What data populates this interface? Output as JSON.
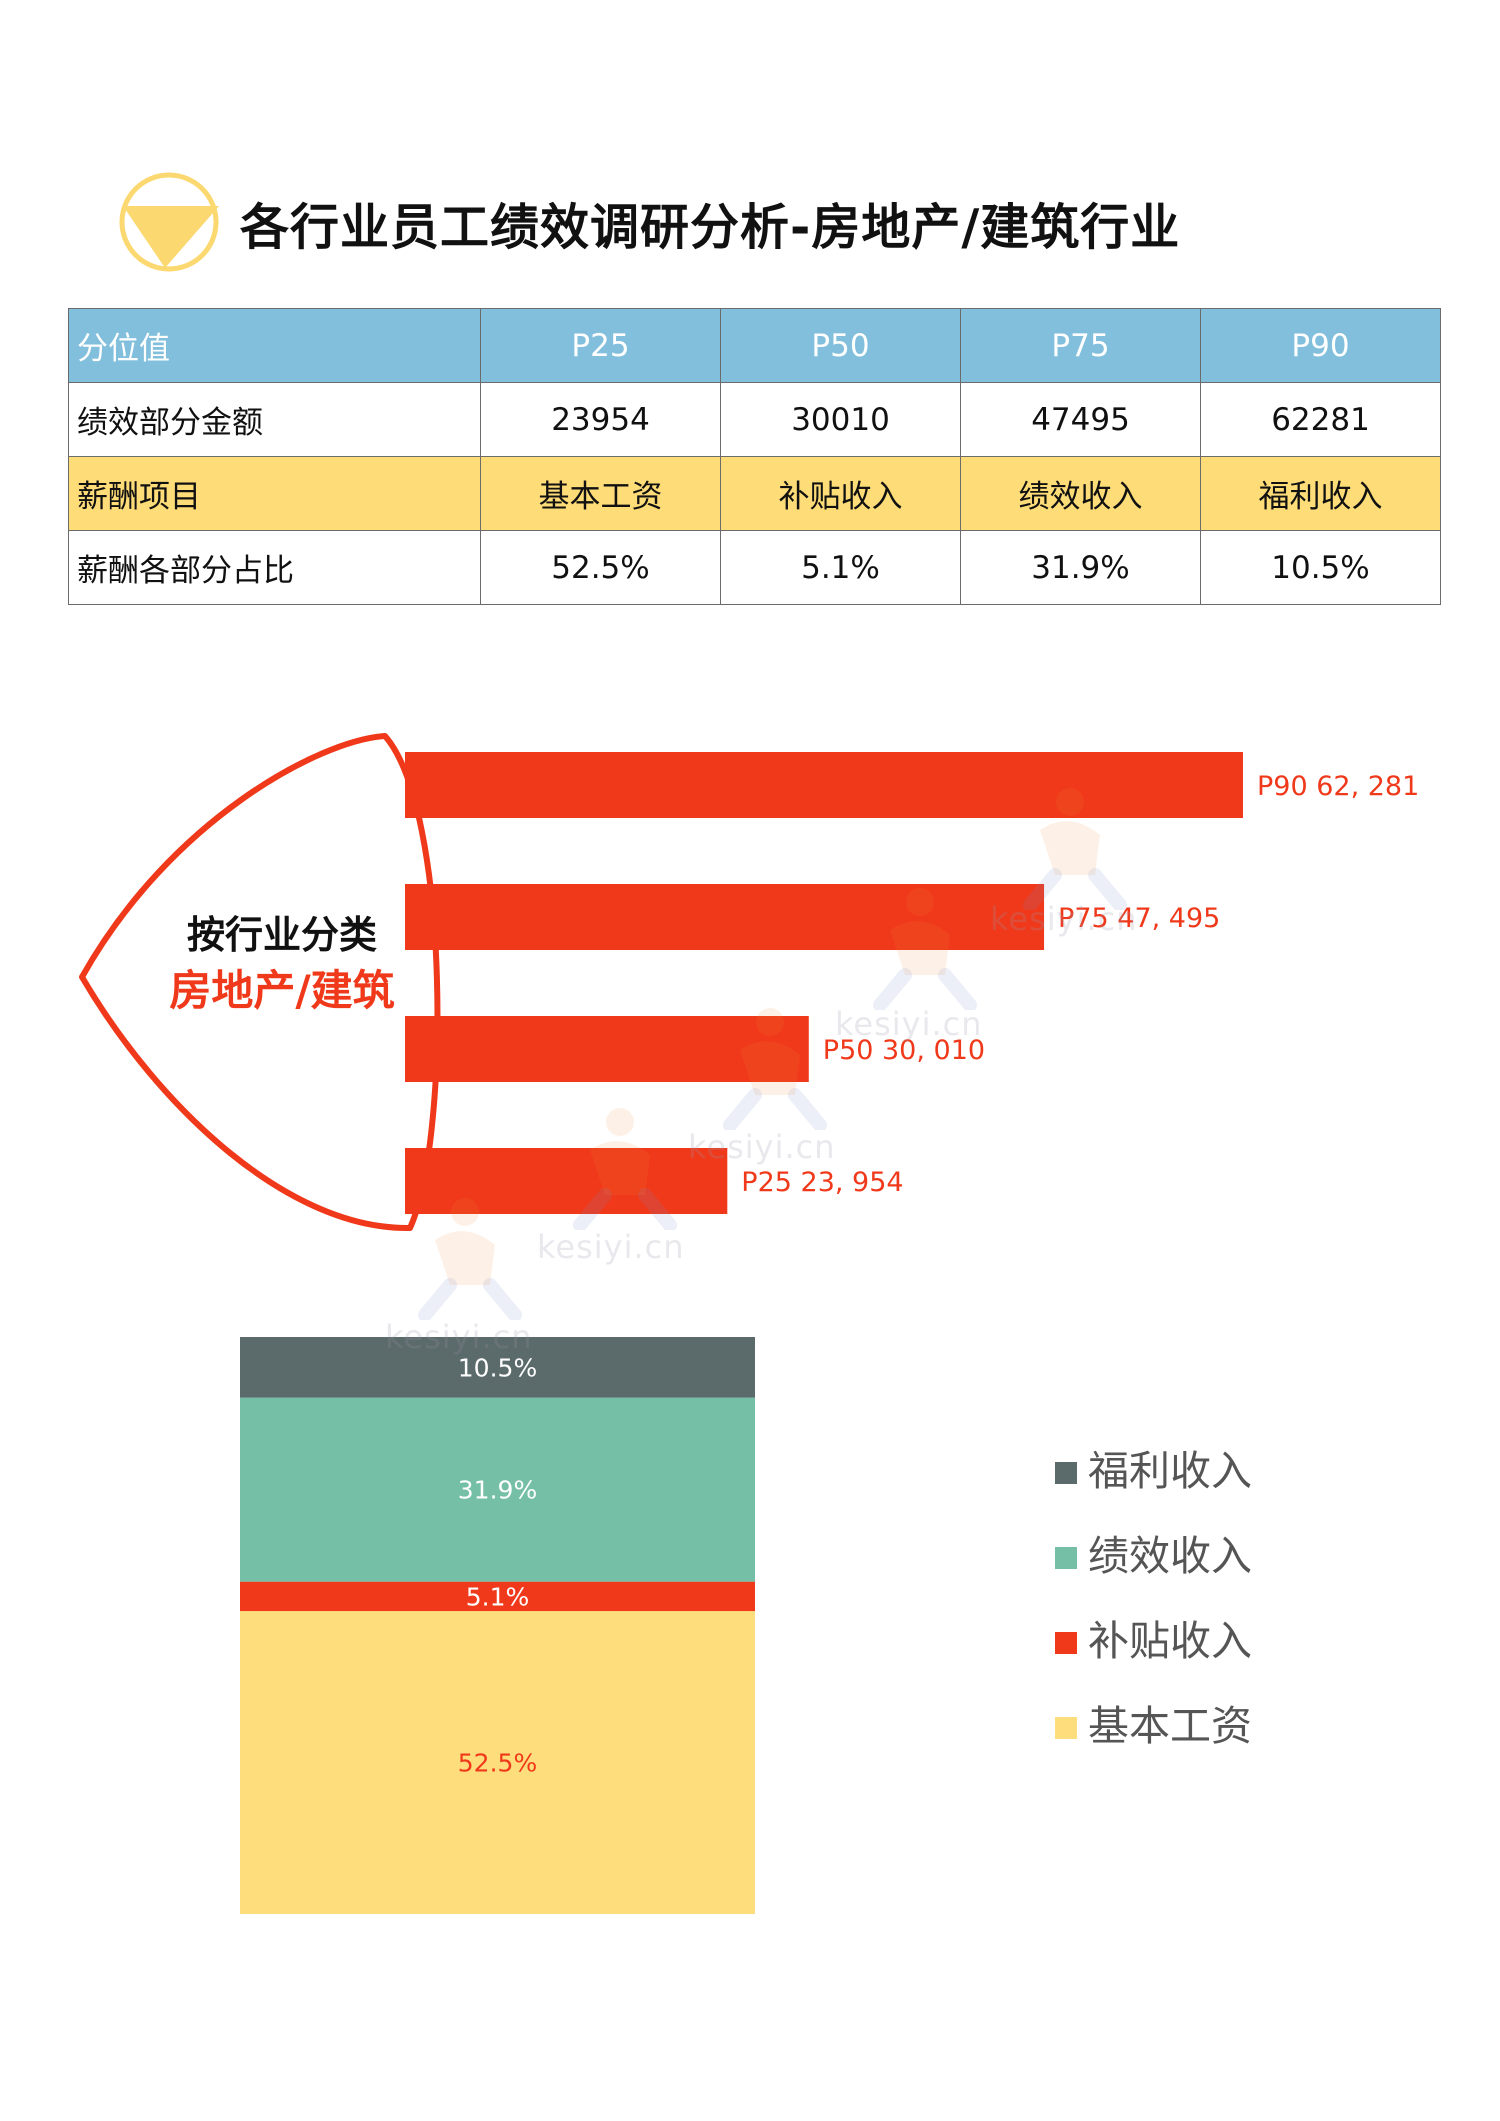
{
  "header": {
    "title": "各行业员工绩效调研分析-房地产/建筑行业",
    "logo_colors": {
      "ring": "#fbd870",
      "triangle": "#fbd870"
    }
  },
  "table": {
    "rows": [
      {
        "style": "blue",
        "cells": [
          "分位值",
          "P25",
          "P50",
          "P75",
          "P90"
        ]
      },
      {
        "style": "white",
        "cells": [
          "绩效部分金额",
          "23954",
          "30010",
          "47495",
          "62281"
        ]
      },
      {
        "style": "yellow",
        "cells": [
          "薪酬项目",
          "基本工资",
          "补贴收入",
          "绩效收入",
          "福利收入"
        ]
      },
      {
        "style": "white",
        "cells": [
          "薪酬各部分占比",
          "52.5%",
          "5.1%",
          "31.9%",
          "10.5%"
        ]
      }
    ]
  },
  "chart_data": [
    {
      "type": "bar",
      "orientation": "horizontal",
      "title": "按行业分类",
      "subtitle": "房地产/建筑",
      "categories": [
        "P90",
        "P75",
        "P50",
        "P25"
      ],
      "values": [
        62281,
        47495,
        30010,
        23954
      ],
      "labels": [
        "P90 62, 281",
        "P75 47, 495",
        "P50 30, 010",
        "P25 23, 954"
      ],
      "xlim": [
        0,
        62281
      ],
      "color": "#f0391a",
      "title_color": "#111111",
      "subtitle_color": "#f0391a",
      "grid": false
    },
    {
      "type": "bar",
      "stacked": true,
      "categories": [
        "基本工资",
        "补贴收入",
        "绩效收入",
        "福利收入"
      ],
      "series": [
        {
          "name": "基本工资",
          "value": 52.5,
          "label": "52.5%",
          "color": "#fedd7c",
          "label_color": "#f0391a"
        },
        {
          "name": "补贴收入",
          "value": 5.1,
          "label": "5.1%",
          "color": "#f0391a",
          "label_color": "#ffffff"
        },
        {
          "name": "绩效收入",
          "value": 31.9,
          "label": "31.9%",
          "color": "#75bfa6",
          "label_color": "#ffffff"
        },
        {
          "name": "福利收入",
          "value": 10.5,
          "label": "10.5%",
          "color": "#5b6a6a",
          "label_color": "#ffffff"
        }
      ],
      "ylim": [
        0,
        100
      ],
      "legend_position": "right",
      "legend_order": [
        "福利收入",
        "绩效收入",
        "补贴收入",
        "基本工资"
      ],
      "legend_text_color": "#555555",
      "grid": false
    }
  ],
  "watermark": {
    "text": "kesiyi.cn"
  }
}
